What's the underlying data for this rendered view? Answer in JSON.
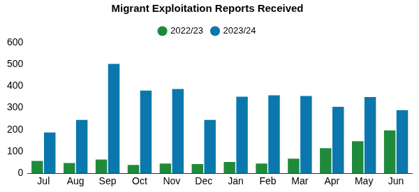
{
  "chart_data": {
    "type": "bar",
    "title": "Migrant Exploitation Reports Received",
    "categories": [
      "Jul",
      "Aug",
      "Sep",
      "Oct",
      "Nov",
      "Dec",
      "Jan",
      "Feb",
      "Mar",
      "Apr",
      "May",
      "Jun"
    ],
    "series": [
      {
        "name": "2022/23",
        "color": "#1f8a3b",
        "values": [
          57,
          47,
          63,
          38,
          45,
          42,
          52,
          45,
          67,
          115,
          147,
          197
        ]
      },
      {
        "name": "2023/24",
        "color": "#0a77ad",
        "values": [
          187,
          245,
          502,
          380,
          387,
          245,
          352,
          358,
          355,
          305,
          350,
          290
        ]
      }
    ],
    "ylim": [
      0,
      600
    ],
    "yticks": [
      0,
      100,
      200,
      300,
      400,
      500,
      600
    ],
    "grid": false,
    "legend": "top"
  }
}
